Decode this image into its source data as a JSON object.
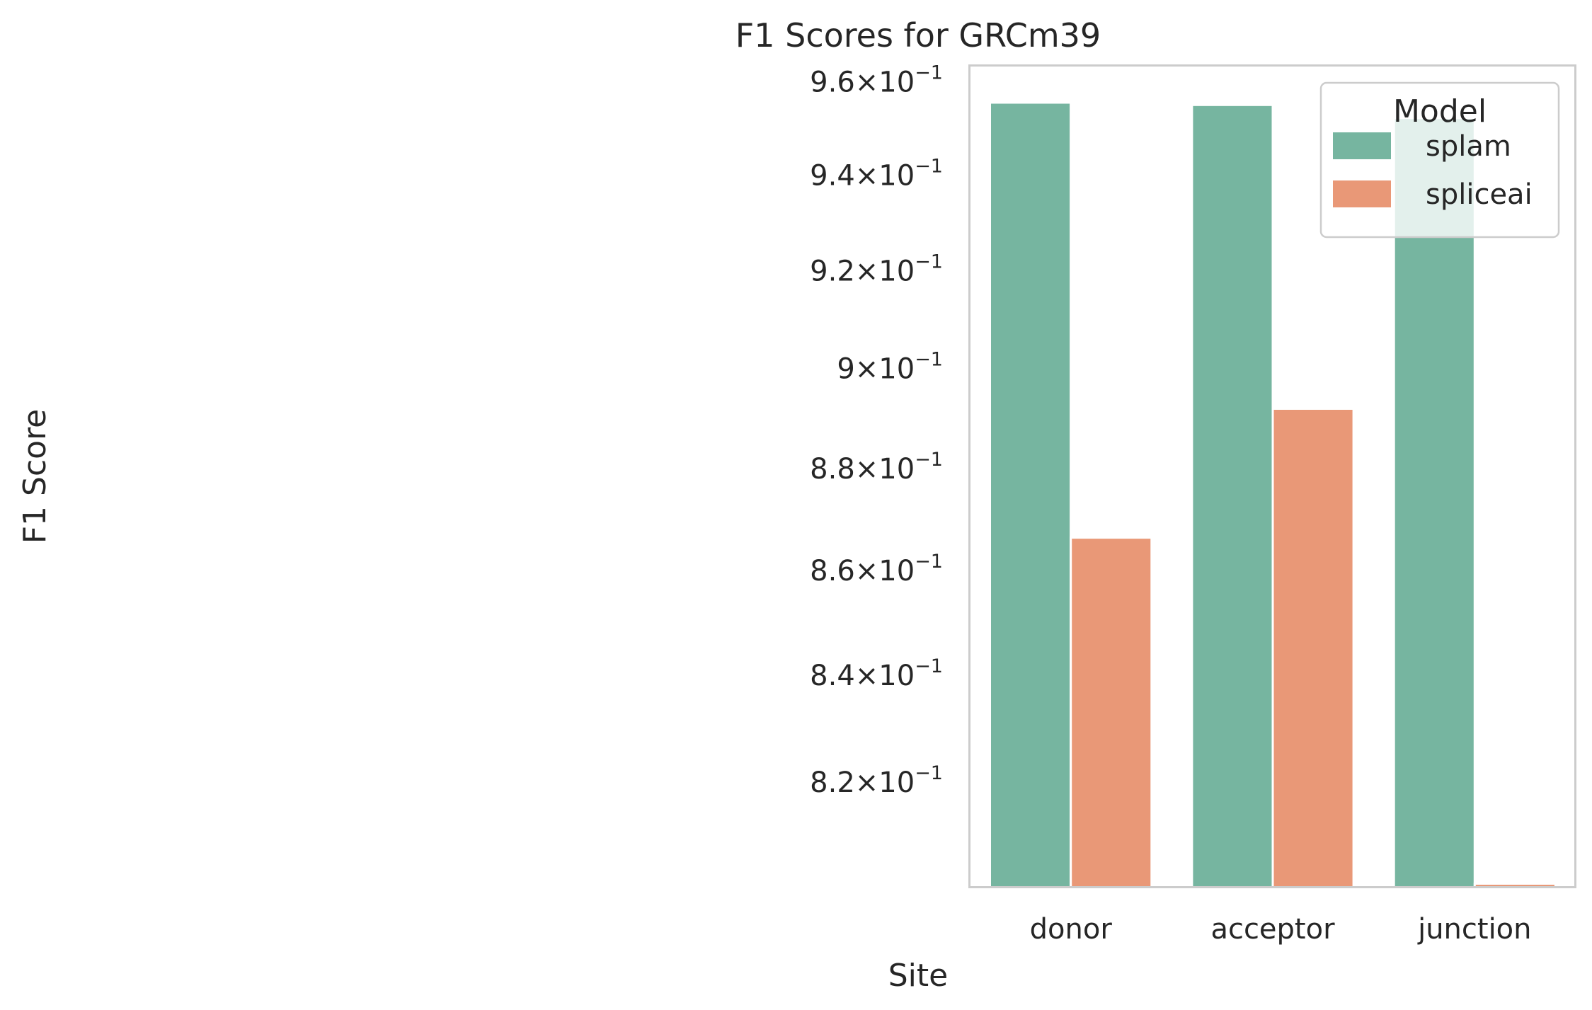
{
  "chart_data": {
    "type": "bar",
    "title": "F1 Scores for GRCm39",
    "xlabel": "Site",
    "ylabel": "F1 Score",
    "categories": [
      "donor",
      "acceptor",
      "junction"
    ],
    "series": [
      {
        "name": "splam",
        "values": [
          0.9555,
          0.955,
          0.9522
        ],
        "color": "#76b5a0"
      },
      {
        "name": "spliceai",
        "values": [
          0.8664,
          0.8919,
          0.8015
        ],
        "color": "#e99877"
      }
    ],
    "y_scale": "log",
    "ylim": [
      0.8008,
      0.9636
    ],
    "y_ticks": [
      {
        "value": 0.82,
        "mantissa": "8.2",
        "exponent": "−1"
      },
      {
        "value": 0.84,
        "mantissa": "8.4",
        "exponent": "−1"
      },
      {
        "value": 0.86,
        "mantissa": "8.6",
        "exponent": "−1"
      },
      {
        "value": 0.88,
        "mantissa": "8.8",
        "exponent": "−1"
      },
      {
        "value": 0.9,
        "mantissa": "9",
        "exponent": "−1"
      },
      {
        "value": 0.92,
        "mantissa": "9.2",
        "exponent": "−1"
      },
      {
        "value": 0.94,
        "mantissa": "9.4",
        "exponent": "−1"
      },
      {
        "value": 0.96,
        "mantissa": "9.6",
        "exponent": "−1"
      }
    ],
    "y_tick_base": "10",
    "legend": {
      "title": "Model",
      "position": "top-right"
    },
    "grid": false
  }
}
